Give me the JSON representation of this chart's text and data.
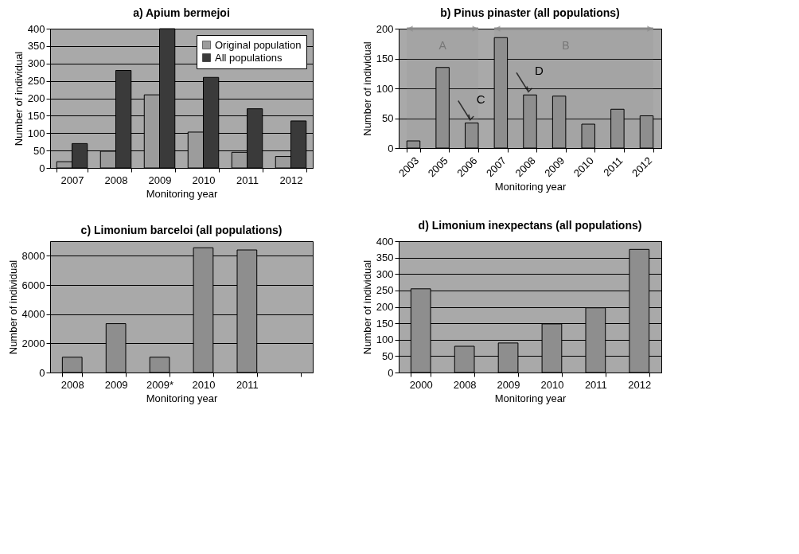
{
  "chart_data": [
    {
      "type": "bar",
      "title": "a) Apium bermejoi",
      "xlabel": "Monitoring year",
      "ylabel": "Number of individual",
      "categories": [
        "2007",
        "2008",
        "2009",
        "2010",
        "2011",
        "2012"
      ],
      "series": [
        {
          "name": "Original population",
          "color": "#9c9c9c",
          "values": [
            18,
            48,
            210,
            103,
            45,
            33
          ]
        },
        {
          "name": "All populations",
          "color": "#3a3a3a",
          "values": [
            70,
            280,
            400,
            260,
            170,
            135
          ]
        }
      ],
      "ylim": [
        0,
        400
      ],
      "yticks": [
        0,
        50,
        100,
        150,
        200,
        250,
        300,
        350,
        400
      ],
      "grid": "y",
      "legend": "top right"
    },
    {
      "type": "bar",
      "title": "b) Pinus pinaster (all populations)",
      "xlabel": "Monitoring year",
      "ylabel": "Number of individual",
      "categories": [
        "2003",
        "2005",
        "2006",
        "2007",
        "2008",
        "2009",
        "2010",
        "2011",
        "2012"
      ],
      "series": [
        {
          "color": "#8e8e8e",
          "values": [
            12,
            135,
            42,
            185,
            89,
            87,
            40,
            65,
            54
          ]
        }
      ],
      "ylim": [
        0,
        200
      ],
      "yticks": [
        0,
        50,
        100,
        150,
        200
      ],
      "grid": "y",
      "bands": [
        {
          "axis": "x",
          "from": "2003",
          "to": "2006",
          "label": "A",
          "color": "#8a8a8a"
        },
        {
          "axis": "x",
          "from": "2007",
          "to": "2012",
          "label": "B",
          "color": "#8a8a8a"
        }
      ],
      "annotations": [
        {
          "text": "C",
          "x": "2006",
          "y": 42
        },
        {
          "text": "D",
          "x": "2008",
          "y": 89
        }
      ]
    },
    {
      "type": "bar",
      "title": "c) Limonium barceloi (all populations)",
      "xlabel": "Monitoring year",
      "ylabel": "Number of individual",
      "categories": [
        "2008",
        "2009",
        "2009*",
        "2010",
        "2011",
        null
      ],
      "series": [
        {
          "color": "#8e8e8e",
          "values": [
            1050,
            3350,
            1050,
            8550,
            8400,
            null
          ]
        }
      ],
      "ylim": [
        0,
        9000
      ],
      "yticks": [
        0,
        2000,
        4000,
        6000,
        8000
      ],
      "grid": "y"
    },
    {
      "type": "bar",
      "title": "d) Limonium inexpectans (all populations)",
      "xlabel": "Monitoring year",
      "ylabel": "Number of individual",
      "categories": [
        "2000",
        "2008",
        "2009",
        "2010",
        "2011",
        "2012"
      ],
      "series": [
        {
          "color": "#8e8e8e",
          "values": [
            255,
            80,
            90,
            148,
            197,
            375
          ]
        }
      ],
      "ylim": [
        0,
        400
      ],
      "yticks": [
        0,
        50,
        100,
        150,
        200,
        250,
        300,
        350,
        400
      ],
      "grid": "y"
    }
  ]
}
